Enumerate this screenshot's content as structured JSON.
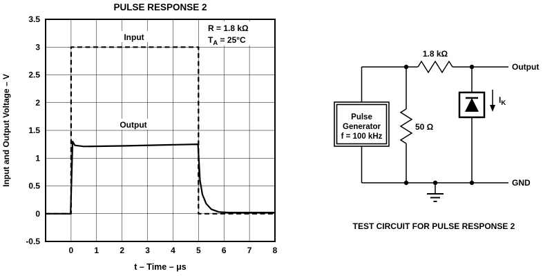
{
  "chart": {
    "title": "PULSE RESPONSE 2",
    "ylabel": "Input and Output Voltage – V",
    "xlabel": "t – Time – μs",
    "annotations": {
      "cond1": "R = 1.8 kΩ",
      "cond2_pre": "T",
      "cond2_sub": "A",
      "cond2_post": " = 25°C",
      "input_label": "Input",
      "output_label": "Output"
    }
  },
  "chart_data": {
    "type": "line",
    "title": "PULSE RESPONSE 2",
    "xlabel": "t – Time – μs",
    "ylabel": "Input and Output Voltage – V",
    "xlim": [
      -1,
      8
    ],
    "ylim": [
      -0.5,
      3.5
    ],
    "x_ticks": [
      0,
      1,
      2,
      3,
      4,
      5,
      6,
      7,
      8
    ],
    "y_ticks": [
      -0.5,
      0,
      0.5,
      1,
      1.5,
      2,
      2.5,
      3,
      3.5
    ],
    "grid": true,
    "legend_position": "inline-labels",
    "conditions": [
      "R = 1.8 kΩ",
      "T_A = 25°C"
    ],
    "series": [
      {
        "name": "Input",
        "style": "dashed",
        "points": [
          [
            -1,
            0
          ],
          [
            0,
            0
          ],
          [
            0,
            3
          ],
          [
            5,
            3
          ],
          [
            5,
            0
          ],
          [
            8,
            0
          ]
        ]
      },
      {
        "name": "Output",
        "style": "solid",
        "points": [
          [
            -1,
            0
          ],
          [
            -0.02,
            0
          ],
          [
            0.06,
            1.3
          ],
          [
            0.15,
            1.23
          ],
          [
            0.5,
            1.21
          ],
          [
            2,
            1.22
          ],
          [
            4,
            1.24
          ],
          [
            4.98,
            1.25
          ],
          [
            5.06,
            0.6
          ],
          [
            5.15,
            0.35
          ],
          [
            5.3,
            0.18
          ],
          [
            5.5,
            0.08
          ],
          [
            5.8,
            0.03
          ],
          [
            6.2,
            0.02
          ],
          [
            8,
            0.02
          ]
        ]
      }
    ]
  },
  "circuit": {
    "labels": {
      "r_top": "1.8 kΩ",
      "r_shunt": "50 Ω",
      "output": "Output",
      "gnd": "GND",
      "ik_pre": "I",
      "ik_sub": "K",
      "pulse_gen_line1": "Pulse",
      "pulse_gen_line2": "Generator",
      "pulse_gen_line3": "f = 100 kHz",
      "caption": "TEST CIRCUIT FOR PULSE RESPONSE 2"
    }
  }
}
